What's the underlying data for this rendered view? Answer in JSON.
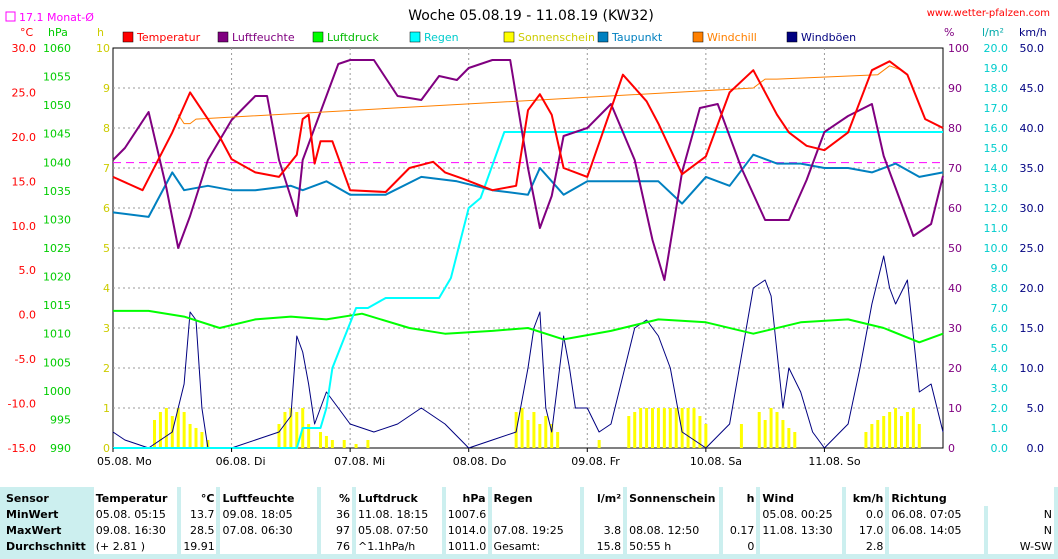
{
  "title": "Woche 05.08.19 - 11.08.19 (KW32)",
  "site": "www.wetter-pfalzen.com",
  "month_avg_label": "17.1 Monat-Ø",
  "units_left": [
    "°C",
    "hPa",
    "h"
  ],
  "units_right": [
    "%",
    "l/m²",
    "km/h"
  ],
  "colors": {
    "temperatur": "#ff0000",
    "luftfeuchte": "#800080",
    "luftdruck": "#00ff00",
    "regen": "#00ffff",
    "sonnenschein": "#ffff00",
    "taupunkt": "#0080c0",
    "windchill": "#ff8000",
    "windboeen": "#000080",
    "monthavg": "#ff00ff"
  },
  "chart_data": {
    "type": "line",
    "title": "Woche 05.08.19 - 11.08.19 (KW32)",
    "x_ticks": [
      "05.08. Mo",
      "06.08. Di",
      "07.08. Mi",
      "08.08. Do",
      "09.08. Fr",
      "10.08. Sa",
      "11.08. So"
    ],
    "axes": {
      "temperature_c": {
        "ticks": [
          "30.0",
          "25.0",
          "20.0",
          "15.0",
          "10.0",
          "5.0",
          "0.0",
          "-5.0",
          "-10.0",
          "-15.0"
        ],
        "range": [
          -15,
          30
        ]
      },
      "pressure_hpa": {
        "ticks": [
          "1060",
          "1055",
          "1050",
          "1045",
          "1040",
          "1035",
          "1030",
          "1025",
          "1020",
          "1015",
          "1010",
          "1005",
          "1000",
          "995",
          "990"
        ],
        "range": [
          990,
          1060
        ]
      },
      "sunshine_h": {
        "ticks": [
          "10",
          "9",
          "8",
          "7",
          "6",
          "5",
          "4",
          "3",
          "2",
          "1",
          "0"
        ],
        "range": [
          0,
          10
        ]
      },
      "humidity_pct": {
        "ticks": [
          "100",
          "90",
          "80",
          "70",
          "60",
          "50",
          "40",
          "30",
          "20",
          "10",
          "0"
        ],
        "range": [
          0,
          100
        ]
      },
      "rain_lm2": {
        "ticks": [
          "20.0",
          "19.0",
          "18.0",
          "17.0",
          "16.0",
          "15.0",
          "14.0",
          "13.0",
          "12.0",
          "11.0",
          "10.0",
          "9.0",
          "8.0",
          "7.0",
          "6.0",
          "5.0",
          "4.0",
          "3.0",
          "2.0",
          "1.0",
          "0.0"
        ],
        "range": [
          0,
          20
        ]
      },
      "wind_kmh": {
        "ticks": [
          "50.0",
          "45.0",
          "40.0",
          "35.0",
          "30.0",
          "25.0",
          "20.0",
          "15.0",
          "10.0",
          "5.0",
          "0.0"
        ],
        "range": [
          0,
          50
        ]
      }
    },
    "month_avg_temp": 17.1,
    "series": [
      {
        "name": "Temperatur",
        "axis": "temperature_c",
        "x": [
          0,
          0.25,
          0.5,
          0.65,
          0.8,
          0.9,
          1.0,
          1.2,
          1.4,
          1.55,
          1.6,
          1.65,
          1.7,
          1.75,
          1.85,
          2.0,
          2.3,
          2.5,
          2.7,
          2.8,
          2.95,
          3.2,
          3.4,
          3.5,
          3.6,
          3.7,
          3.8,
          3.9,
          4.0,
          4.3,
          4.5,
          4.6,
          4.8,
          5.0,
          5.2,
          5.4,
          5.6,
          5.7,
          5.85,
          6.0,
          6.2,
          6.4,
          6.55,
          6.7,
          6.85,
          7.0
        ],
        "values": [
          15.5,
          14.0,
          20.5,
          25.0,
          22.0,
          20.0,
          17.5,
          16.0,
          15.5,
          18.0,
          22.0,
          22.5,
          17.0,
          19.5,
          19.5,
          14.0,
          13.8,
          16.5,
          17.2,
          16.0,
          15.3,
          14.0,
          14.5,
          23.0,
          24.8,
          22.5,
          16.5,
          16.0,
          15.5,
          27.0,
          24.0,
          21.5,
          15.8,
          17.8,
          25.0,
          27.5,
          22.5,
          20.5,
          19.0,
          18.5,
          20.5,
          27.5,
          28.5,
          27.0,
          22.0,
          21.0
        ]
      },
      {
        "name": "Luftfeuchte",
        "axis": "humidity_pct",
        "x": [
          0,
          0.1,
          0.3,
          0.45,
          0.55,
          0.65,
          0.8,
          1.0,
          1.2,
          1.3,
          1.4,
          1.55,
          1.6,
          1.8,
          1.9,
          2.0,
          2.2,
          2.4,
          2.6,
          2.75,
          2.9,
          3.0,
          3.2,
          3.35,
          3.5,
          3.6,
          3.7,
          3.8,
          4.0,
          4.2,
          4.4,
          4.55,
          4.65,
          4.8,
          4.95,
          5.1,
          5.3,
          5.5,
          5.7,
          5.85,
          6.0,
          6.2,
          6.4,
          6.5,
          6.6,
          6.75,
          6.9,
          7.0
        ],
        "values": [
          72,
          75,
          84,
          65,
          50,
          58,
          72,
          82,
          88,
          88,
          72,
          58,
          72,
          88,
          96,
          97,
          97,
          88,
          87,
          93,
          92,
          95,
          97,
          97,
          70,
          55,
          63,
          78,
          80,
          86,
          72,
          52,
          42,
          69,
          85,
          86,
          70,
          57,
          57,
          67,
          79,
          83,
          86,
          73,
          65,
          53,
          56,
          68
        ]
      },
      {
        "name": "Luftdruck",
        "axis": "pressure_hpa",
        "x": [
          0,
          0.3,
          0.6,
          0.9,
          1.2,
          1.5,
          1.8,
          2.1,
          2.5,
          2.8,
          3.2,
          3.5,
          3.8,
          4.2,
          4.6,
          5.0,
          5.4,
          5.8,
          6.2,
          6.5,
          6.8,
          7.0
        ],
        "values": [
          1014.0,
          1014.0,
          1013.0,
          1011.0,
          1012.5,
          1013.0,
          1012.5,
          1013.5,
          1011.0,
          1010.0,
          1010.5,
          1011.0,
          1009.0,
          1010.5,
          1012.5,
          1012.0,
          1010.0,
          1012.0,
          1012.5,
          1011.0,
          1008.5,
          1010.0
        ]
      },
      {
        "name": "Regen",
        "axis": "rain_lm2",
        "x": [
          0,
          1.55,
          1.6,
          1.75,
          1.8,
          1.85,
          1.95,
          2.05,
          2.15,
          2.3,
          2.45,
          2.6,
          2.75,
          2.85,
          3.0,
          3.1,
          3.3,
          3.4,
          3.6,
          3.8,
          4.0,
          4.5,
          5.0,
          5.5,
          6.0,
          6.5,
          7.0
        ],
        "values": [
          0,
          0,
          1.0,
          1.0,
          2.0,
          4.0,
          5.5,
          7.0,
          7.0,
          7.5,
          7.5,
          7.5,
          7.5,
          8.5,
          12.0,
          12.5,
          15.8,
          15.8,
          15.8,
          15.8,
          15.8,
          15.8,
          15.8,
          15.8,
          15.8,
          15.8,
          15.8
        ]
      },
      {
        "name": "Sonnenschein",
        "axis": "sunshine_h",
        "bars": true,
        "x": [
          0.35,
          0.4,
          0.45,
          0.5,
          0.55,
          0.6,
          0.65,
          0.7,
          0.75,
          0.8,
          1.4,
          1.45,
          1.5,
          1.55,
          1.6,
          1.65,
          1.75,
          1.8,
          1.85,
          1.95,
          2.05,
          2.15,
          3.4,
          3.45,
          3.5,
          3.55,
          3.6,
          3.65,
          3.7,
          3.75,
          4.1,
          4.35,
          4.4,
          4.45,
          4.5,
          4.55,
          4.6,
          4.65,
          4.7,
          4.75,
          4.8,
          4.85,
          4.9,
          4.95,
          5.0,
          5.3,
          5.45,
          5.5,
          5.55,
          5.6,
          5.65,
          5.7,
          5.75,
          6.35,
          6.4,
          6.45,
          6.5,
          6.55,
          6.6,
          6.65,
          6.7,
          6.75,
          6.8
        ],
        "values": [
          0.7,
          0.9,
          1.0,
          0.8,
          1.0,
          0.9,
          0.6,
          0.5,
          0.4,
          0.2,
          0.6,
          0.9,
          1.0,
          0.9,
          1.0,
          0.6,
          0.4,
          0.3,
          0.2,
          0.2,
          0.1,
          0.2,
          0.9,
          1.0,
          0.7,
          0.9,
          0.6,
          0.8,
          0.6,
          0.4,
          0.2,
          0.8,
          0.9,
          1.0,
          1.0,
          1.0,
          1.0,
          1.0,
          1.0,
          1.0,
          1.0,
          1.0,
          1.0,
          0.8,
          0.6,
          0.6,
          0.9,
          0.7,
          1.0,
          0.9,
          0.7,
          0.5,
          0.4,
          0.4,
          0.6,
          0.7,
          0.8,
          0.9,
          1.0,
          0.8,
          0.9,
          1.0,
          0.6
        ]
      },
      {
        "name": "Taupunkt",
        "axis": "temperature_c",
        "x": [
          0,
          0.3,
          0.5,
          0.6,
          0.8,
          1.0,
          1.2,
          1.5,
          1.6,
          1.8,
          2.0,
          2.3,
          2.6,
          2.9,
          3.2,
          3.5,
          3.6,
          3.8,
          4.0,
          4.3,
          4.6,
          4.8,
          5.0,
          5.2,
          5.4,
          5.6,
          5.8,
          6.0,
          6.2,
          6.4,
          6.6,
          6.8,
          7.0
        ],
        "values": [
          11.5,
          11.0,
          16.0,
          14.0,
          14.5,
          14.0,
          14.0,
          14.5,
          14.0,
          15.0,
          13.5,
          13.5,
          15.5,
          15.0,
          14.0,
          13.5,
          16.5,
          13.5,
          15.0,
          15.0,
          15.0,
          12.5,
          15.5,
          14.5,
          18.0,
          17.0,
          17.0,
          16.5,
          16.5,
          16.0,
          17.0,
          15.5,
          16.0
        ]
      },
      {
        "name": "Windchill",
        "axis": "temperature_c",
        "x": [
          0.55,
          0.6,
          0.65,
          0.7,
          5.4,
          5.5,
          5.6,
          6.45,
          6.55,
          6.65
        ],
        "values": [
          22.5,
          21.5,
          21.5,
          22.0,
          25.5,
          26.5,
          26.5,
          27.0,
          28.0,
          27.5
        ]
      },
      {
        "name": "Windböen",
        "axis": "wind_kmh",
        "x": [
          0,
          0.1,
          0.3,
          0.5,
          0.6,
          0.65,
          0.7,
          0.75,
          0.8,
          1.0,
          1.2,
          1.4,
          1.5,
          1.55,
          1.6,
          1.65,
          1.7,
          1.8,
          1.9,
          2.0,
          2.2,
          2.4,
          2.6,
          2.8,
          3.0,
          3.2,
          3.4,
          3.5,
          3.55,
          3.6,
          3.65,
          3.7,
          3.8,
          3.85,
          3.9,
          4.0,
          4.1,
          4.2,
          4.4,
          4.5,
          4.6,
          4.7,
          4.8,
          5.0,
          5.2,
          5.4,
          5.5,
          5.55,
          5.6,
          5.65,
          5.7,
          5.8,
          5.9,
          6.0,
          6.2,
          6.3,
          6.4,
          6.5,
          6.55,
          6.6,
          6.7,
          6.8,
          6.9,
          7.0
        ],
        "values": [
          2,
          1,
          0,
          2,
          8,
          17,
          16,
          5,
          0,
          0,
          1,
          2,
          4,
          14,
          12,
          8,
          3,
          7,
          5,
          3,
          2,
          3,
          5,
          3,
          0,
          1,
          2,
          10,
          15,
          17,
          5,
          2,
          14,
          10,
          5,
          5,
          2,
          3,
          15,
          16,
          14,
          10,
          2,
          0,
          3,
          20,
          21,
          19,
          12,
          5,
          10,
          7,
          2,
          0,
          3,
          10,
          18,
          24,
          20,
          18,
          21,
          7,
          8,
          2
        ]
      }
    ]
  },
  "stats": {
    "headers": [
      "Sensor",
      "Temperatur",
      "°C",
      "Luftfeuchte",
      "%",
      "Luftdruck",
      "hPa",
      "Regen",
      "l/m²",
      "Sonnenschein",
      "h",
      "Wind",
      "km/h",
      "Richtung"
    ],
    "rows": [
      {
        "label": "MinWert",
        "temp_date": "05.08.  05:15",
        "temp_val": "13.7",
        "hum_date": "09.08.  18:05",
        "hum_val": "36",
        "press_date": "11.08.  18:15",
        "press_val": "1007.6",
        "rain_date": "",
        "rain_val": "",
        "sun_date": "",
        "sun_val": "",
        "wind_date": "05.08.  00:25",
        "wind_val": "0.0",
        "dir_date": "06.08.  07:05",
        "dir_val": "N"
      },
      {
        "label": "MaxWert",
        "temp_date": "09.08.  16:30",
        "temp_val": "28.5",
        "hum_date": "07.08.  06:30",
        "hum_val": "97",
        "press_date": "05.08.  07:50",
        "press_val": "1014.0",
        "rain_date": "07.08.  19:25",
        "rain_val": "3.8",
        "sun_date": "08.08.  12:50",
        "sun_val": "0.17",
        "wind_date": "11.08.  13:30",
        "wind_val": "17.0",
        "dir_date": "06.08.  14:05",
        "dir_val": "N"
      },
      {
        "label": "Durchschnitt",
        "temp_date": "(+ 2.81 )",
        "temp_val": "19.91",
        "hum_date": "",
        "hum_val": "76",
        "press_date": "^1.1hPa/h",
        "press_val": "1011.0",
        "rain_date": "Gesamt:",
        "rain_val": "15.8",
        "sun_date": "50:55 h",
        "sun_val": "0",
        "wind_date": "",
        "wind_val": "2.8",
        "dir_date": "",
        "dir_val": "W-SW"
      }
    ]
  }
}
